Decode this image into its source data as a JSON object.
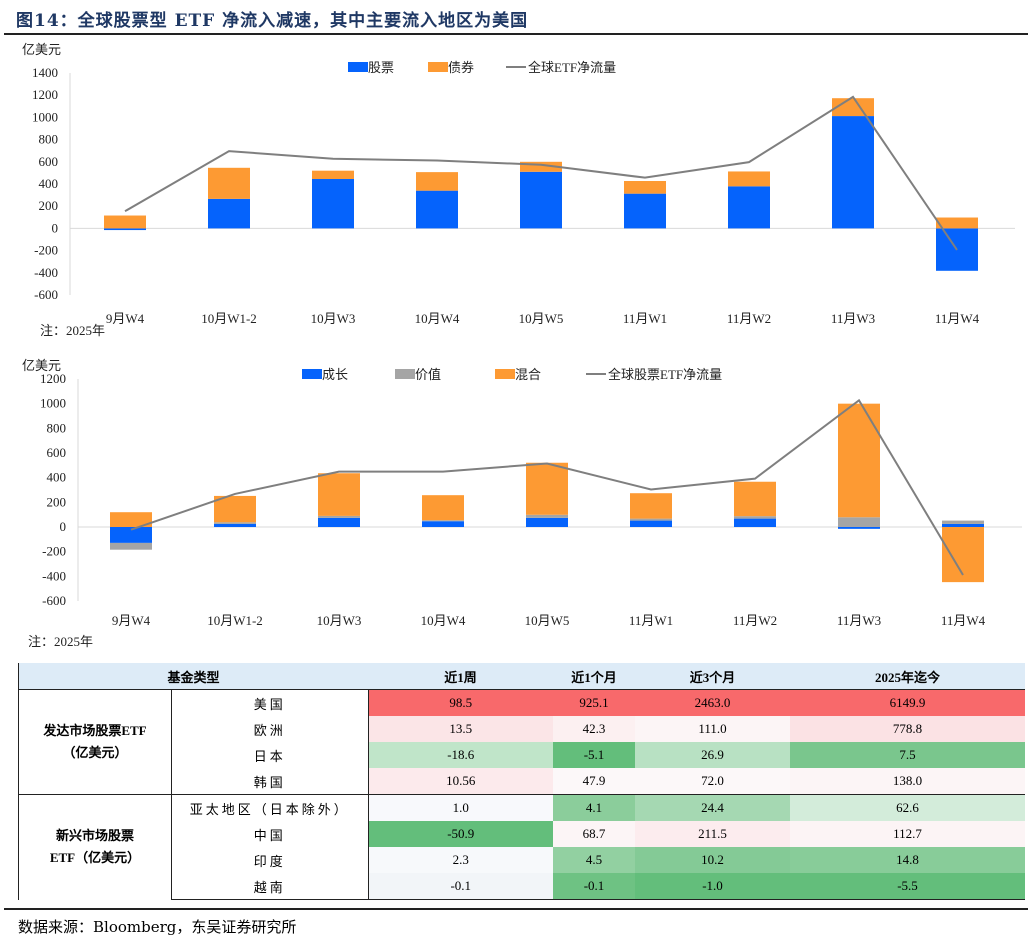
{
  "title": "图14：全球股票型 ETF 净流入减速，其中主要流入地区为美国",
  "chart_data": [
    {
      "type": "bar",
      "stacked": true,
      "ylabel": "亿美元",
      "ylim": [
        -600,
        1400
      ],
      "yticks": [
        -600,
        -400,
        -200,
        0,
        200,
        400,
        600,
        800,
        1000,
        1200,
        1400
      ],
      "legend_placement": "top",
      "categories": [
        "9月W4",
        "10月W1-2",
        "10月W3",
        "10月W4",
        "10月W5",
        "11月W1",
        "11月W2",
        "11月W3",
        "11月W4"
      ],
      "series": [
        {
          "name": "股票",
          "kind": "bar",
          "color": "#0563fc",
          "values": [
            -15,
            266,
            445,
            340,
            510,
            313,
            379,
            1012,
            -382
          ]
        },
        {
          "name": "债券",
          "kind": "bar",
          "color": "#fd9a33",
          "values": [
            116,
            280,
            75,
            167,
            90,
            114,
            134,
            161,
            98
          ]
        },
        {
          "name": "全球ETF净流量",
          "kind": "line",
          "color": "#7f7f7f",
          "values": [
            155,
            696,
            627,
            612,
            573,
            457,
            597,
            1185,
            -194
          ]
        }
      ],
      "note": "注：2025年"
    },
    {
      "type": "bar",
      "stacked": true,
      "ylabel": "亿美元",
      "ylim": [
        -600,
        1200
      ],
      "yticks": [
        -600,
        -400,
        -200,
        0,
        200,
        400,
        600,
        800,
        1000,
        1200
      ],
      "legend_placement": "top",
      "categories": [
        "9月W4",
        "10月W1-2",
        "10月W3",
        "10月W4",
        "10月W5",
        "11月W1",
        "11月W2",
        "11月W3",
        "11月W4"
      ],
      "series": [
        {
          "name": "成长",
          "kind": "bar",
          "color": "#0563fc",
          "values": [
            -129,
            25,
            74,
            47,
            74,
            52,
            68,
            -15,
            25
          ]
        },
        {
          "name": "价值",
          "kind": "bar",
          "color": "#a5a5a5",
          "values": [
            -55,
            13,
            16,
            8,
            25,
            16,
            20,
            79,
            27
          ]
        },
        {
          "name": "混合",
          "kind": "bar",
          "color": "#fd9a33",
          "values": [
            120,
            214,
            346,
            203,
            422,
            206,
            279,
            921,
            -447
          ]
        },
        {
          "name": "全球股票ETF净流量",
          "kind": "line",
          "color": "#7f7f7f",
          "values": [
            -22,
            268,
            449,
            449,
            515,
            304,
            392,
            1027,
            -389
          ]
        }
      ],
      "note": "注：2025年"
    }
  ],
  "table": {
    "headers": [
      "基金类型",
      "近1周",
      "近1个月",
      "近3个月",
      "2025年迄今"
    ],
    "groups": [
      {
        "label_lines": [
          "发达市场股票ETF",
          "（亿美元）"
        ],
        "rows": [
          {
            "region": "美国",
            "values": [
              "98.5",
              "925.1",
              "2463.0",
              "6149.9"
            ],
            "colors": [
              "#f8696b",
              "#f8696b",
              "#f8696b",
              "#f8696b"
            ]
          },
          {
            "region": "欧洲",
            "values": [
              "13.5",
              "42.3",
              "111.0",
              "778.8"
            ],
            "colors": [
              "#fbe5e7",
              "#fcf0f1",
              "#fcf5f6",
              "#fbe2e4"
            ]
          },
          {
            "region": "日本",
            "values": [
              "-18.6",
              "-5.1",
              "26.9",
              "7.5"
            ],
            "colors": [
              "#c0e5c9",
              "#63be7b",
              "#b8e1c3",
              "#7ac68d"
            ]
          },
          {
            "region": "韩国",
            "values": [
              "10.56",
              "47.9",
              "72.0",
              "138.0"
            ],
            "colors": [
              "#fceaec",
              "#fcf8f9",
              "#fcf8f9",
              "#fcf5f6"
            ]
          }
        ]
      },
      {
        "label_lines": [
          "新兴市场股票",
          "ETF（亿美元）"
        ],
        "rows": [
          {
            "region": "亚太地区（日本除外）",
            "values": [
              "1.0",
              "4.1",
              "24.4",
              "62.6"
            ],
            "colors": [
              "#f8f9fc",
              "#8bcd9b",
              "#a5d8b2",
              "#d3ecda"
            ]
          },
          {
            "region": "中国",
            "values": [
              "-50.9",
              "68.7",
              "211.5",
              "112.7"
            ],
            "colors": [
              "#63be7b",
              "#fcf5f6",
              "#fcecee",
              "#fcf4f5"
            ]
          },
          {
            "region": "印度",
            "values": [
              "2.3",
              "4.5",
              "10.2",
              "14.8"
            ],
            "colors": [
              "#f7f9fb",
              "#92d0a1",
              "#84ca96",
              "#88cc99"
            ]
          },
          {
            "region": "越南",
            "values": [
              "-0.1",
              "-0.1",
              "-1.0",
              "-5.5"
            ],
            "colors": [
              "#f2f5f8",
              "#6ec283",
              "#63be7b",
              "#63be7b"
            ]
          }
        ]
      }
    ]
  },
  "source": "数据来源：Bloomberg，东吴证券研究所"
}
